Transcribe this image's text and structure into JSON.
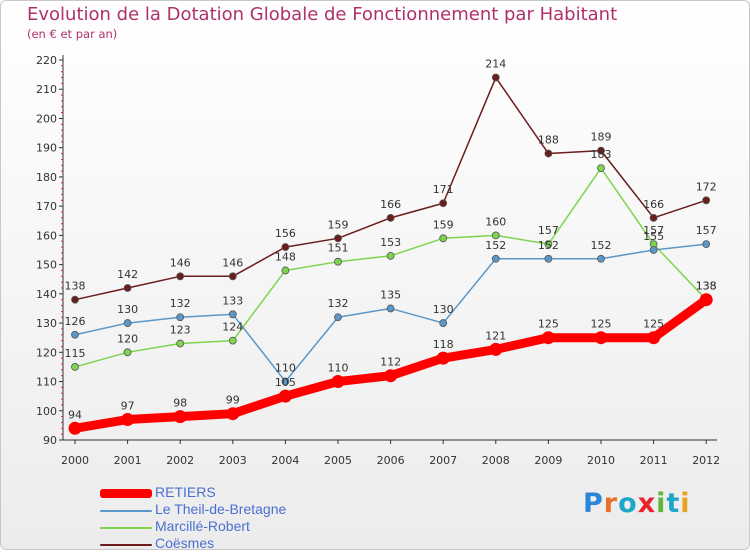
{
  "title": "Evolution de la Dotation Globale de Fonctionnement par Habitant",
  "subtitle": "(en € et par an)",
  "logo": {
    "letters": [
      "P",
      "r",
      "o",
      "x",
      "i",
      "t",
      "i"
    ],
    "colors": [
      "#2a86d6",
      "#e8712a",
      "#1ea7c8",
      "#e8212a",
      "#5cb83a",
      "#1ea7c8",
      "#e8a21e"
    ]
  },
  "chart_data": {
    "type": "line",
    "title": "Evolution de la Dotation Globale de Fonctionnement par Habitant",
    "subtitle": "(en € et par an)",
    "categories": [
      "2000",
      "2001",
      "2002",
      "2003",
      "2004",
      "2005",
      "2006",
      "2007",
      "2008",
      "2009",
      "2010",
      "2011",
      "2012"
    ],
    "ylim": [
      90,
      220
    ],
    "yticks": [
      90,
      100,
      110,
      120,
      130,
      140,
      150,
      160,
      170,
      180,
      190,
      200,
      210,
      220
    ],
    "grid": false,
    "legend_position": "bottom-left",
    "series": [
      {
        "name": "RETIERS",
        "color": "#ff0000",
        "values": [
          94,
          97,
          98,
          99,
          105,
          110,
          112,
          118,
          121,
          125,
          125,
          125,
          138
        ]
      },
      {
        "name": "Le Theil-de-Bretagne",
        "color": "#5b97c8",
        "values": [
          126,
          130,
          132,
          133,
          110,
          132,
          135,
          130,
          152,
          152,
          152,
          155,
          157
        ]
      },
      {
        "name": "Marcillé-Robert",
        "color": "#7ed34f",
        "values": [
          115,
          120,
          123,
          124,
          148,
          151,
          153,
          159,
          160,
          157,
          183,
          157,
          138
        ]
      },
      {
        "name": "Coësmes",
        "color": "#6b1c1c",
        "values": [
          138,
          142,
          146,
          146,
          156,
          159,
          166,
          171,
          214,
          188,
          189,
          166,
          172
        ]
      }
    ]
  }
}
